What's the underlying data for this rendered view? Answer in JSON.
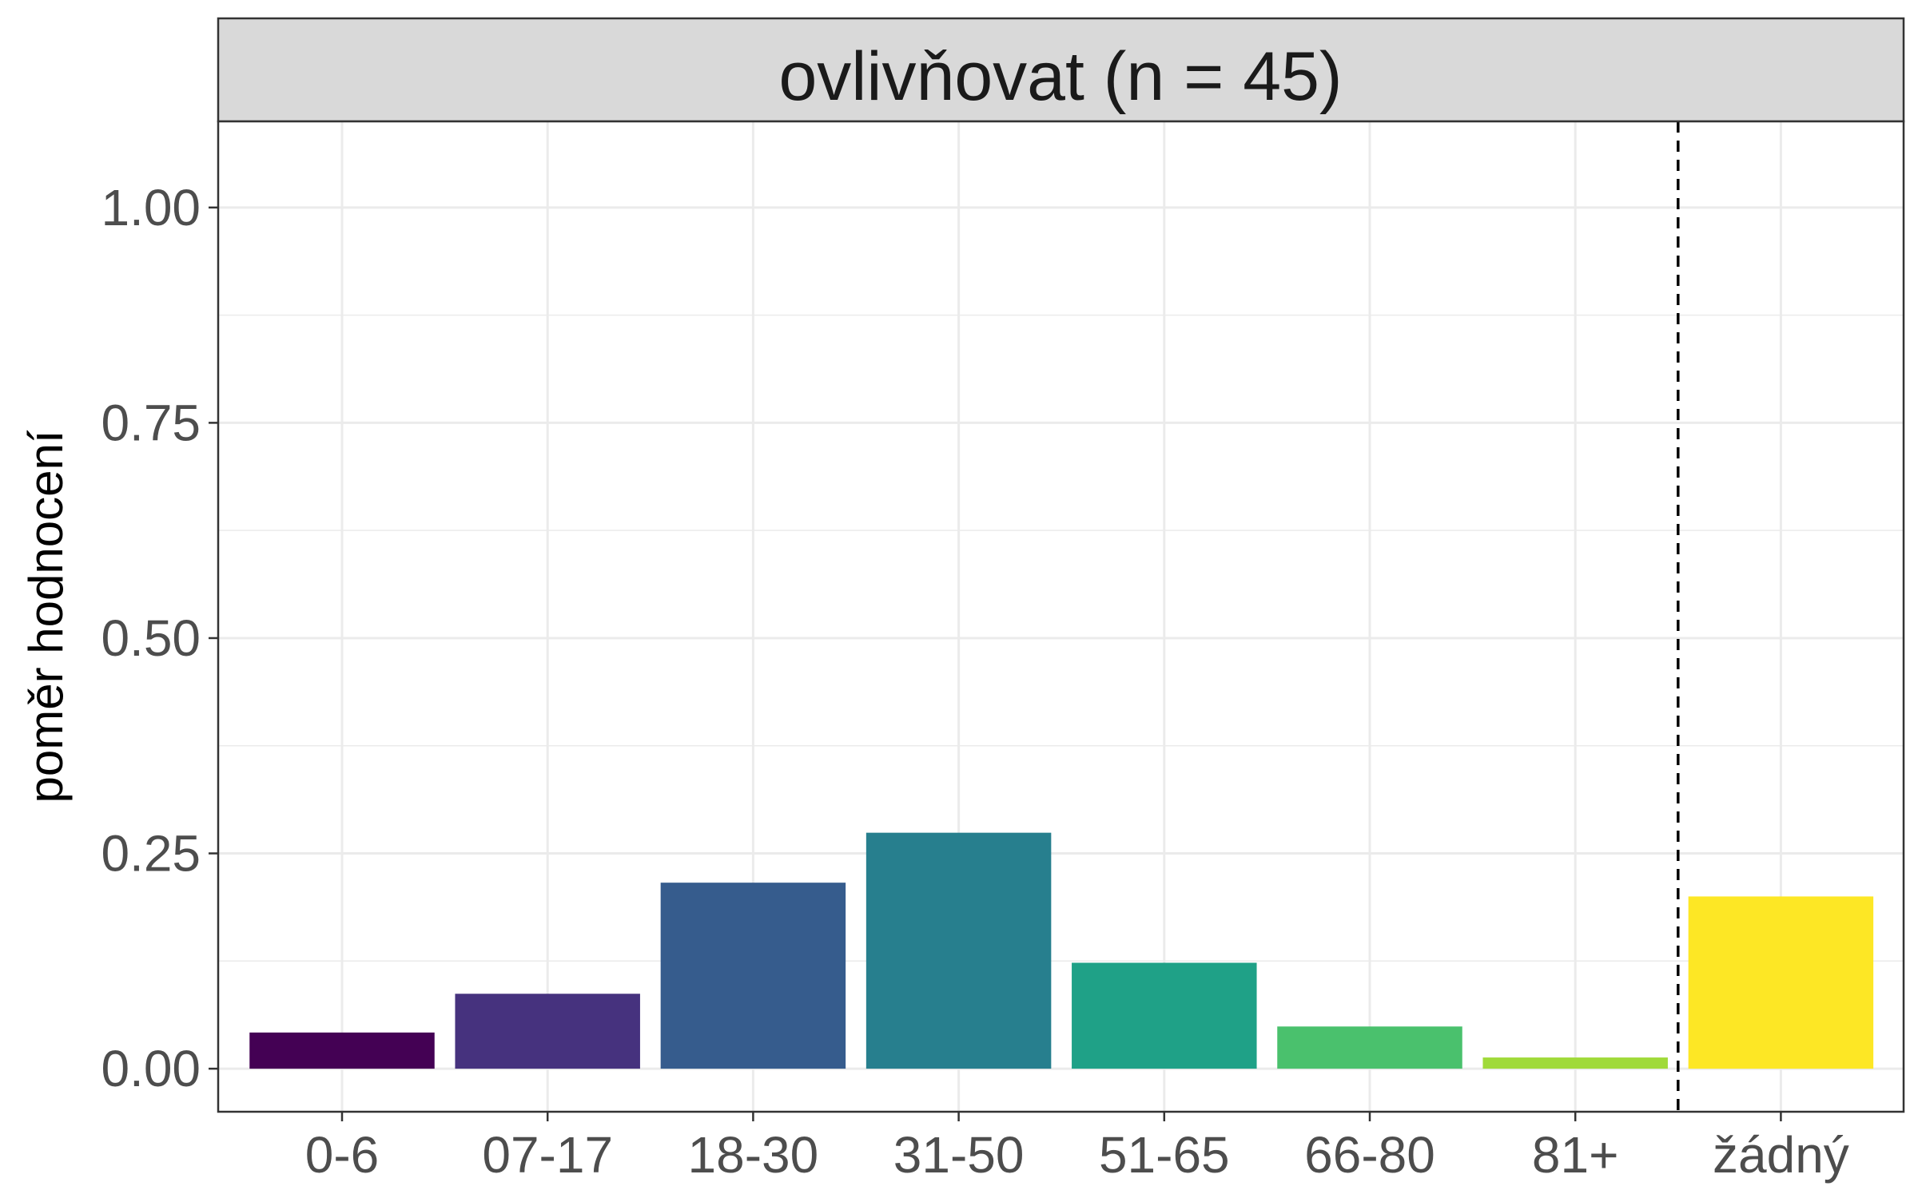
{
  "chart_data": {
    "type": "bar",
    "title": "ovlivňovat (n = 45)",
    "xlabel": "",
    "ylabel": "poměr hodnocení",
    "categories": [
      "0-6",
      "07-17",
      "18-30",
      "31-50",
      "51-65",
      "66-80",
      "81+",
      "žádný"
    ],
    "values": [
      0.042,
      0.087,
      0.216,
      0.274,
      0.123,
      0.049,
      0.013,
      0.2
    ],
    "colors": [
      "#440154",
      "#46327e",
      "#365c8d",
      "#277f8e",
      "#1fa187",
      "#4ac16d",
      "#a0da39",
      "#fde725"
    ],
    "ylim": [
      -0.05,
      1.1
    ],
    "yticks": [
      0,
      0.25,
      0.5,
      0.75,
      1
    ],
    "ytick_labels": [
      "0.00",
      "0.25",
      "0.50",
      "0.75",
      "1.00"
    ],
    "separator": {
      "style": "dashed",
      "between": [
        "81+",
        "žádný"
      ]
    },
    "grid": true,
    "legend": "none"
  }
}
